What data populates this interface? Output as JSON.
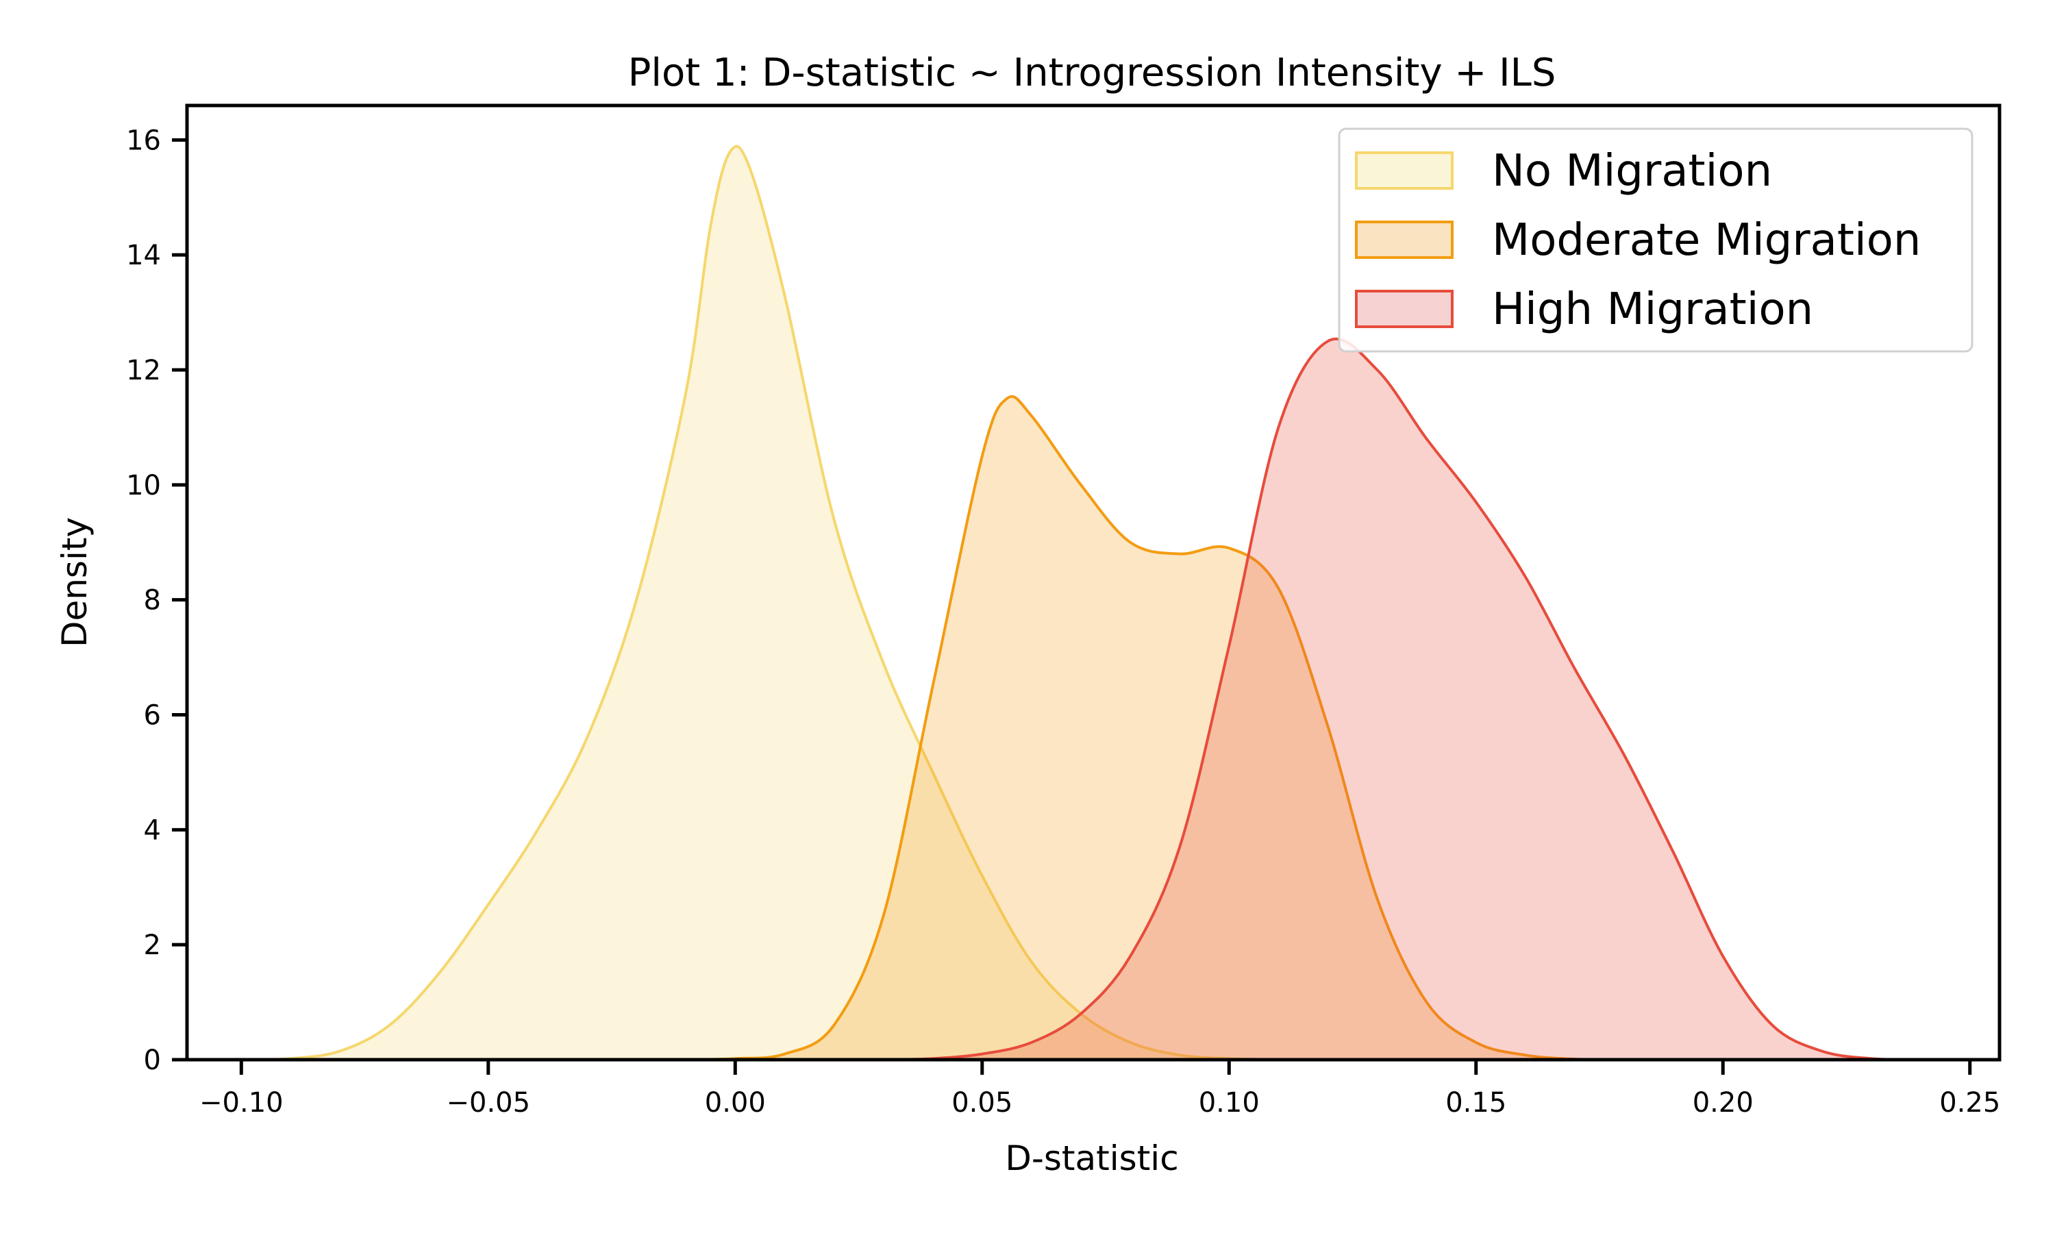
{
  "chart_data": {
    "type": "area",
    "title": "Plot 1: D-statistic ~ Introgression Intensity + ILS",
    "xlabel": "D-statistic",
    "ylabel": "Density",
    "xlim": [
      -0.111,
      0.256
    ],
    "ylim": [
      0,
      16.6
    ],
    "xticks": [
      -0.1,
      -0.05,
      0.0,
      0.05,
      0.1,
      0.15,
      0.2,
      0.25
    ],
    "xtick_labels": [
      "−0.10",
      "−0.05",
      "0.00",
      "0.05",
      "0.10",
      "0.15",
      "0.20",
      "0.25"
    ],
    "yticks": [
      0,
      2,
      4,
      6,
      8,
      10,
      12,
      14,
      16
    ],
    "ytick_labels": [
      "0",
      "2",
      "4",
      "6",
      "8",
      "10",
      "12",
      "14",
      "16"
    ],
    "grid": false,
    "legend_position": "top-right",
    "series": [
      {
        "name": "No Migration",
        "color": "#f5d76e",
        "fill": "#fbf5d8",
        "points": [
          [
            -0.1,
            0
          ],
          [
            -0.09,
            0.02
          ],
          [
            -0.08,
            0.15
          ],
          [
            -0.07,
            0.6
          ],
          [
            -0.06,
            1.5
          ],
          [
            -0.05,
            2.7
          ],
          [
            -0.04,
            4.0
          ],
          [
            -0.03,
            5.6
          ],
          [
            -0.02,
            8.0
          ],
          [
            -0.01,
            11.6
          ],
          [
            -0.005,
            14.5
          ],
          [
            -0.001,
            15.8
          ],
          [
            0.003,
            15.5
          ],
          [
            0.01,
            13.3
          ],
          [
            0.02,
            9.4
          ],
          [
            0.03,
            6.9
          ],
          [
            0.04,
            5.0
          ],
          [
            0.05,
            3.2
          ],
          [
            0.06,
            1.7
          ],
          [
            0.07,
            0.8
          ],
          [
            0.08,
            0.3
          ],
          [
            0.09,
            0.08
          ],
          [
            0.1,
            0.02
          ],
          [
            0.11,
            0
          ]
        ]
      },
      {
        "name": "Moderate Migration",
        "color": "#f39c12",
        "fill": "#fae3c0",
        "points": [
          [
            -0.01,
            0
          ],
          [
            0.0,
            0.02
          ],
          [
            0.01,
            0.1
          ],
          [
            0.02,
            0.6
          ],
          [
            0.03,
            2.5
          ],
          [
            0.04,
            6.5
          ],
          [
            0.05,
            10.5
          ],
          [
            0.055,
            11.5
          ],
          [
            0.06,
            11.2
          ],
          [
            0.07,
            10.0
          ],
          [
            0.08,
            9.0
          ],
          [
            0.09,
            8.8
          ],
          [
            0.1,
            8.9
          ],
          [
            0.11,
            8.2
          ],
          [
            0.12,
            5.8
          ],
          [
            0.13,
            2.8
          ],
          [
            0.14,
            1.0
          ],
          [
            0.15,
            0.3
          ],
          [
            0.16,
            0.08
          ],
          [
            0.17,
            0.01
          ],
          [
            0.18,
            0
          ]
        ]
      },
      {
        "name": "High Migration",
        "color": "#e74c3c",
        "fill": "#f7d2d2",
        "points": [
          [
            0.03,
            0
          ],
          [
            0.04,
            0.02
          ],
          [
            0.05,
            0.1
          ],
          [
            0.06,
            0.3
          ],
          [
            0.07,
            0.8
          ],
          [
            0.08,
            1.8
          ],
          [
            0.09,
            3.7
          ],
          [
            0.1,
            7.2
          ],
          [
            0.11,
            11.0
          ],
          [
            0.12,
            12.5
          ],
          [
            0.13,
            12.0
          ],
          [
            0.14,
            10.8
          ],
          [
            0.15,
            9.7
          ],
          [
            0.16,
            8.4
          ],
          [
            0.17,
            6.8
          ],
          [
            0.18,
            5.3
          ],
          [
            0.19,
            3.6
          ],
          [
            0.2,
            1.8
          ],
          [
            0.21,
            0.6
          ],
          [
            0.22,
            0.15
          ],
          [
            0.23,
            0.02
          ],
          [
            0.24,
            0
          ]
        ]
      }
    ]
  }
}
